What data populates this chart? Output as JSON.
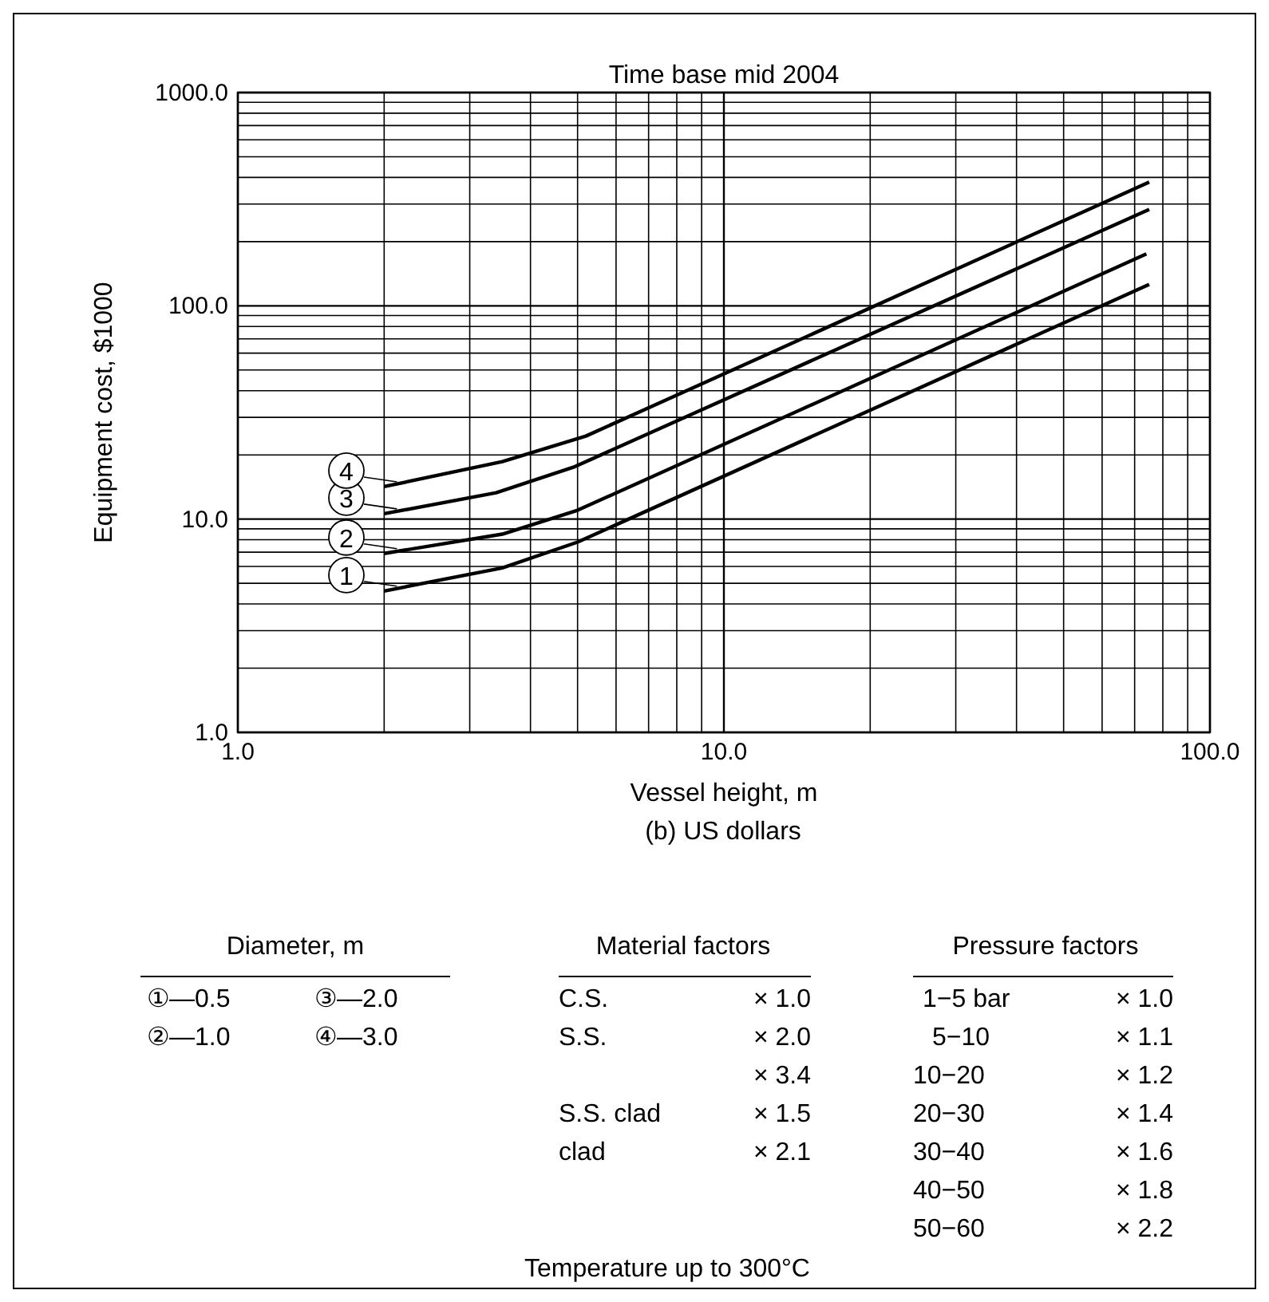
{
  "chart_data": {
    "type": "line",
    "title": "Time base mid 2004",
    "xlabel": "Vessel height, m",
    "ylabel": "Equipment cost, $1000",
    "log": "xy",
    "grid": true,
    "legend": "left",
    "marker": "none",
    "line_style": "solid",
    "xlim": [
      1,
      100
    ],
    "ylim": [
      1,
      1000
    ],
    "xticks": [
      {
        "value": 1,
        "label": "1.0"
      },
      {
        "value": 2,
        "label": null
      },
      {
        "value": 3,
        "label": null
      },
      {
        "value": 4,
        "label": null
      },
      {
        "value": 5,
        "label": null
      },
      {
        "value": 6,
        "label": null
      },
      {
        "value": 7,
        "label": null
      },
      {
        "value": 8,
        "label": null
      },
      {
        "value": 9,
        "label": null
      },
      {
        "value": 10,
        "label": "10.0"
      },
      {
        "value": 20,
        "label": null
      },
      {
        "value": 30,
        "label": null
      },
      {
        "value": 40,
        "label": null
      },
      {
        "value": 50,
        "label": null
      },
      {
        "value": 60,
        "label": null
      },
      {
        "value": 70,
        "label": null
      },
      {
        "value": 80,
        "label": null
      },
      {
        "value": 90,
        "label": null
      },
      {
        "value": 100,
        "label": "100.0"
      }
    ],
    "yticks": [
      {
        "value": 1,
        "label": "1.0"
      },
      {
        "value": 2,
        "label": null
      },
      {
        "value": 3,
        "label": null
      },
      {
        "value": 4,
        "label": null
      },
      {
        "value": 5,
        "label": null
      },
      {
        "value": 6,
        "label": null
      },
      {
        "value": 7,
        "label": null
      },
      {
        "value": 8,
        "label": null
      },
      {
        "value": 9,
        "label": null
      },
      {
        "value": 10,
        "label": "10.0"
      },
      {
        "value": 20,
        "label": null
      },
      {
        "value": 30,
        "label": null
      },
      {
        "value": 40,
        "label": null
      },
      {
        "value": 50,
        "label": null
      },
      {
        "value": 60,
        "label": null
      },
      {
        "value": 70,
        "label": null
      },
      {
        "value": 80,
        "label": null
      },
      {
        "value": 90,
        "label": null
      },
      {
        "value": 100,
        "label": "100.0"
      },
      {
        "value": 200,
        "label": null
      },
      {
        "value": 300,
        "label": null
      },
      {
        "value": 400,
        "label": null
      },
      {
        "value": 500,
        "label": null
      },
      {
        "value": 600,
        "label": null
      },
      {
        "value": 700,
        "label": null
      },
      {
        "value": 800,
        "label": null
      },
      {
        "value": 900,
        "label": null
      },
      {
        "value": 1000,
        "label": "1000.0"
      }
    ],
    "series": [
      {
        "name": "1",
        "color": "#000000",
        "x": [
          2,
          3.5,
          5,
          75
        ],
        "values": [
          4.6,
          5.9,
          7.8,
          126
        ]
      },
      {
        "name": "2",
        "color": "#000000",
        "x": [
          2,
          3.5,
          5,
          74
        ],
        "values": [
          6.9,
          8.5,
          11,
          175
        ]
      },
      {
        "name": "3",
        "color": "#000000",
        "x": [
          2,
          3.4,
          4.9,
          75
        ],
        "values": [
          10.6,
          13.3,
          17.5,
          283
        ]
      },
      {
        "name": "4",
        "color": "#000000",
        "x": [
          2,
          3.5,
          5.2,
          75
        ],
        "values": [
          14.2,
          18.6,
          24.5,
          380
        ]
      }
    ],
    "annotations": [
      "(b) US dollars",
      "Diameter, m",
      "①—0.5",
      "③—2.0",
      "②—1.0",
      "④—3.0",
      "Material factors",
      "C.S.",
      "× 1.0",
      "S.S.",
      "× 2.0",
      "× 3.4",
      "S.S. clad",
      "× 1.5",
      "clad",
      "× 2.1",
      "Pressure factors",
      "1−5 bar",
      "× 1.0",
      "5−10",
      "× 1.1",
      "10−20",
      "× 1.2",
      "20−30",
      "× 1.4",
      "30−40",
      "× 1.6",
      "40−50",
      "× 1.8",
      "50−60",
      "× 2.2",
      "Temperature up to 300°C"
    ]
  }
}
